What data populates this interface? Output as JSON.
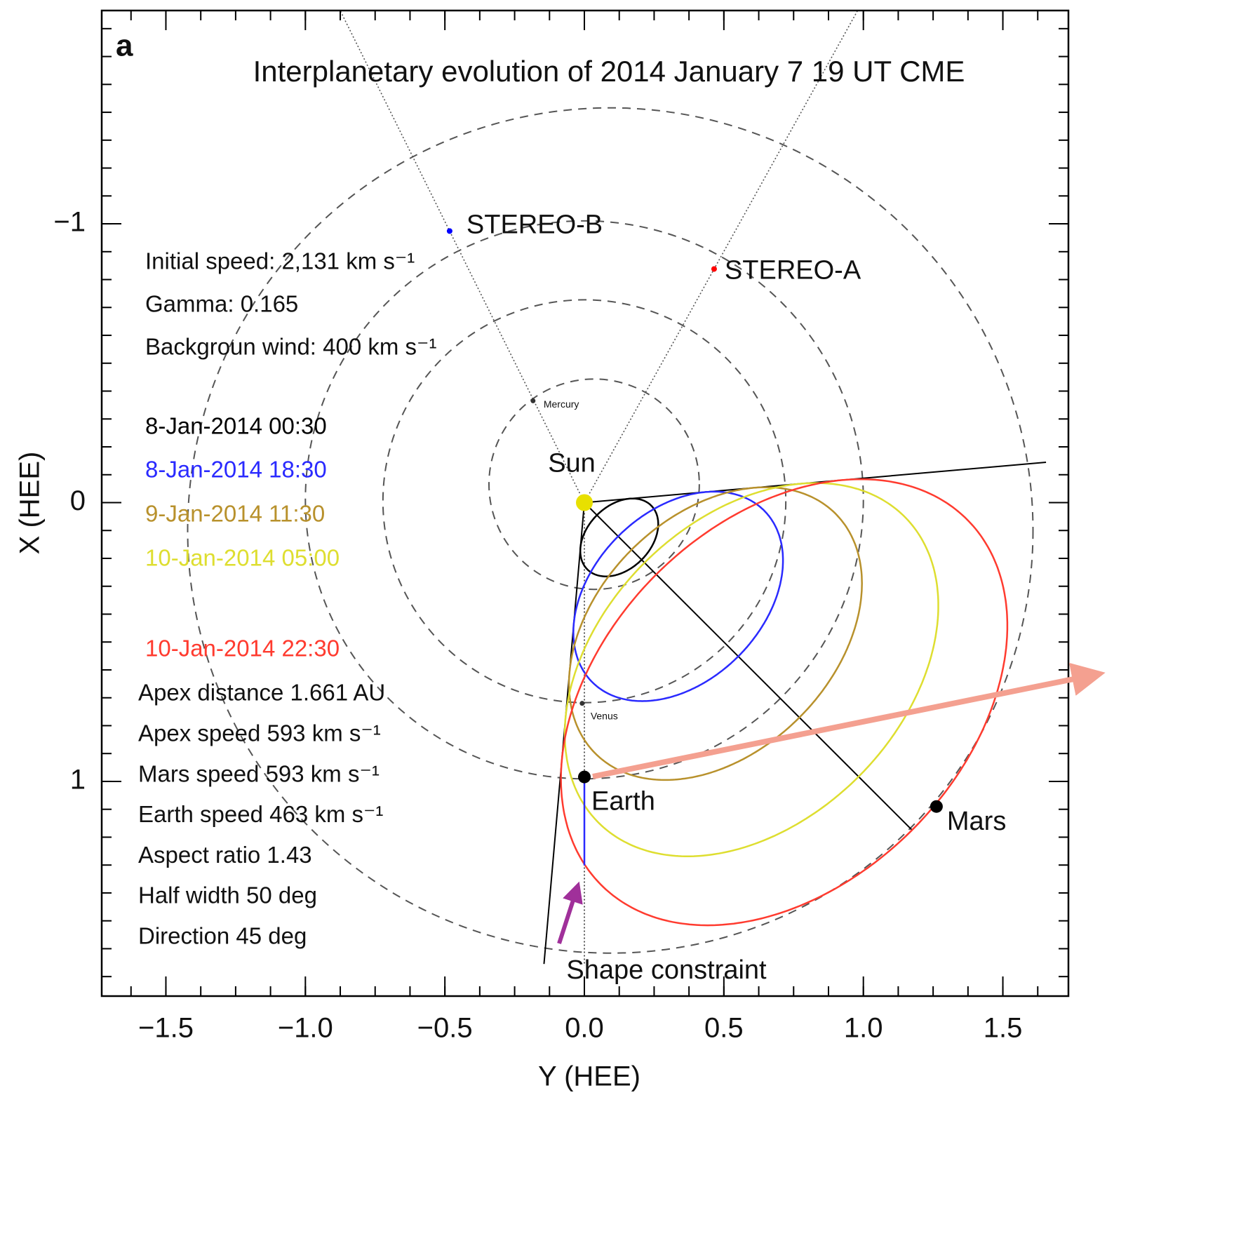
{
  "chart_data": {
    "type": "scatter",
    "panel": "a",
    "title": "Interplanetary evolution of 2014 January 7 19 UT CME",
    "x_label": "Y (HEE)",
    "y_label": "X (HEE)",
    "xlim": [
      -1.73,
      1.735
    ],
    "ylim": [
      -1.765,
      1.77
    ],
    "y_inverted": true,
    "xticks": [
      {
        "value": -1.5,
        "label": "−1.5"
      },
      {
        "value": -1.0,
        "label": "−1.0"
      },
      {
        "value": -0.5,
        "label": "−0.5"
      },
      {
        "value": 0,
        "label": "0.0"
      },
      {
        "value": 0.5,
        "label": "0.5"
      },
      {
        "value": 1.0,
        "label": "1.0"
      },
      {
        "value": 1.5,
        "label": "1.5"
      }
    ],
    "yticks": [
      {
        "value": -1,
        "label": "−1"
      },
      0,
      1
    ],
    "xminor_ticks": [
      -1.625,
      -1.5,
      -1.375,
      -1.25,
      -1.125,
      -1.0,
      -0.875,
      -0.75,
      -0.625,
      -0.5,
      -0.375,
      -0.25,
      -0.125,
      0,
      0.125,
      0.25,
      0.375,
      0.5,
      0.625,
      0.75,
      0.875,
      1.0,
      1.125,
      1.25,
      1.375,
      1.5,
      1.625
    ],
    "yminor_ticks": [
      -1.7,
      -1.6,
      -1.5,
      -1.4,
      -1.3,
      -1.2,
      -1.1,
      -1.0,
      -0.9,
      -0.8,
      -0.7,
      -0.6,
      -0.5,
      -0.4,
      -0.3,
      -0.2,
      -0.1,
      0,
      0.1,
      0.2,
      0.3,
      0.4,
      0.5,
      0.6,
      0.7,
      0.8,
      0.9,
      1.0,
      1.1,
      1.2,
      1.3,
      1.4,
      1.5,
      1.6,
      1.7
    ],
    "orbits": [
      {
        "cx": 0.035,
        "cy": -0.066,
        "r": 0.377
      },
      {
        "cx": 0,
        "cy": -0.005,
        "r": 0.722
      },
      {
        "cx": 0,
        "cy": -0.01,
        "r": 1.0
      },
      {
        "cx": 0.093,
        "cy": 0.1,
        "r": 1.515
      }
    ],
    "bodies": [
      {
        "name": "Sun",
        "x": 0,
        "y": 0,
        "color": "#e8e000"
      },
      {
        "name": "Mercury",
        "x": -0.184,
        "y": -0.365,
        "color": "#333333"
      },
      {
        "name": "Venus",
        "x": -0.008,
        "y": 0.72,
        "color": "#333333"
      },
      {
        "name": "Earth",
        "x": 0,
        "y": 0.984,
        "color": "#000000"
      },
      {
        "name": "Mars",
        "x": 1.262,
        "y": 1.09,
        "color": "#000000"
      },
      {
        "name": "STEREO-A",
        "x": 0.465,
        "y": -0.838,
        "color": "#ff0000"
      },
      {
        "name": "STEREO-B",
        "x": -0.483,
        "y": -0.974,
        "color": "#0000ff"
      }
    ],
    "model_text": [
      "Initial speed: 2,131 km s⁻¹",
      "Gamma: 0.165",
      "Backgroun wind: 400 km s⁻¹"
    ],
    "series": [
      {
        "name": "8-Jan-2014 00:30",
        "color": "#000000",
        "apex": 0.29
      },
      {
        "name": "8-Jan-2014 18:30",
        "color": "#2a2aff",
        "apex": 0.78
      },
      {
        "name": "9-Jan-2014 11:30",
        "color": "#b8912c",
        "apex": 1.09
      },
      {
        "name": "10-Jan-2014 05:00",
        "color": "#dede30",
        "apex": 1.39
      },
      {
        "name": "10-Jan-2014 22:30",
        "color": "#ff3b2f",
        "apex": 1.661
      }
    ],
    "apex_text": [
      "Apex distance 1.661 AU",
      "Apex speed 593 km s⁻¹",
      "Mars speed 593 km s⁻¹",
      "Earth speed 463 km s⁻¹",
      "Aspect ratio 1.43",
      "Half width 50 deg",
      "Direction 45 deg"
    ],
    "aspect_ratio": 1.43,
    "half_width": 50,
    "direction": 45,
    "constraint_label": "Shape constraint"
  }
}
